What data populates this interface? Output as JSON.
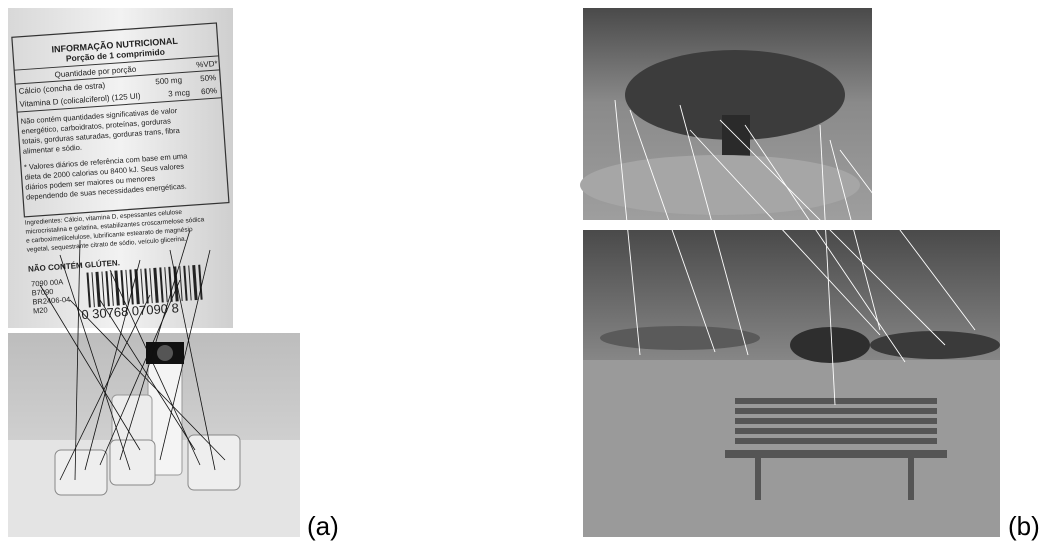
{
  "figure": {
    "panel_a": {
      "label": "(a)",
      "nutrition": {
        "title": "INFORMAÇÃO NUTRICIONAL",
        "subtitle": "Porção de 1 comprimido",
        "header": [
          "Quantidade por porção",
          "%VD*"
        ],
        "rows": [
          [
            "Cálcio (concha de ostra)",
            "500 mg",
            "50%"
          ],
          [
            "Vitamina D (colicalciferol) (125 UI)",
            "3 mcg",
            "60%"
          ]
        ],
        "notes": [
          "Não contém quantidades significativas de valor",
          "energético, carboidratos, proteínas, gorduras",
          "totais, gorduras saturadas, gorduras trans, fibra",
          "alimentar e sódio.",
          "* Valores diários de referência com base em uma",
          "dieta de 2000 calorias ou 8400 kJ. Seus valores",
          "diários podem ser maiores ou menores",
          "dependendo de suas necessidades energéticas."
        ],
        "ingredients": [
          "Ingredientes: Cálcio, vitamina D, espessantes celulose",
          "microcristalina e gelatina, estabilizantes croscarmelose sódica",
          "e carboximetilcelulose, lubrificante estearato de magnésio",
          "vegetal, sequestrante citrato de sódio, veículo glicerina."
        ],
        "gluten": "NÃO CONTÉM GLÚTEN.",
        "lot": [
          "7090 00A",
          "B7090",
          "BR2406-04",
          "M20"
        ],
        "barcode": "0  30768  07090  8"
      }
    },
    "panel_b": {
      "label": "(b)"
    }
  }
}
